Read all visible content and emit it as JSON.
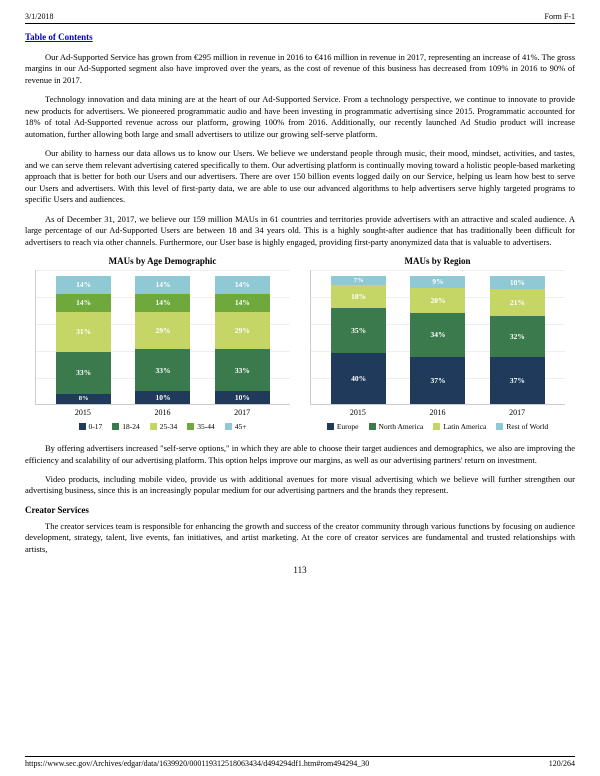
{
  "header": {
    "date": "3/1/2018",
    "title": "Form F-1"
  },
  "toc": "Table of Contents",
  "paras": {
    "p1": "Our Ad-Supported Service has grown from €295 million in revenue in 2016 to €416 million in revenue in 2017, representing an increase of 41%. The gross margins in our Ad-Supported segment also have improved over the years, as the cost of revenue of this business has decreased from 109% in 2016 to 90% of revenue in 2017.",
    "p2": "Technology innovation and data mining are at the heart of our Ad-Supported Service. From a technology perspective, we continue to innovate to provide new products for advertisers. We pioneered programmatic audio and have been investing in programmatic advertising since 2015. Programmatic accounted for 18% of total Ad-Supported revenue across our platform, growing 100% from 2016. Additionally, our recently launched Ad Studio product will increase automation, further allowing both large and small advertisers to utilize our growing self-serve platform.",
    "p3": "Our ability to harness our data allows us to know our Users. We believe we understand people through music, their mood, mindset, activities, and tastes, and we can serve them relevant advertising catered specifically to them. Our advertising platform is continually moving toward a holistic people-based marketing approach that is better for both our Users and our advertisers. There are over 150 billion events logged daily on our Service, helping us learn how best to serve our Users and advertisers. With this level of first-party data, we are able to use our advanced algorithms to help advertisers serve highly targeted programs to specific Users and audiences.",
    "p4": "As of December 31, 2017, we believe our 159 million MAUs in 61 countries and territories provide advertisers with an attractive and scaled audience. A large percentage of our Ad-Supported Users are between 18 and 34 years old. This is a highly sought-after audience that has traditionally been difficult for advertisers to reach via other channels. Furthermore, our User base is highly engaged, providing first-party anonymized data that is valuable to advertisers.",
    "p5": "By offering advertisers increased \"self-serve options,\" in which they are able to choose their target audiences and demographics, we also are improving the efficiency and scalability of our advertising platform. This option helps improve our margins, as well as our advertising partners' return on investment.",
    "p6": "Video products, including mobile video, provide us with additional avenues for more visual advertising which we believe will further strengthen our advertising business, since this is an increasingly popular medium for our advertising partners and the brands they represent.",
    "p7": "The creator services team is responsible for enhancing the growth and success of the creator community through various functions by focusing on audience development, strategy, talent, live events, fan initiatives, and artist marketing. At the core of creator services are fundamental and trusted relationships with artists,"
  },
  "charts": {
    "age": {
      "title": "MAUs by Age Demographic",
      "categories": [
        "2015",
        "2016",
        "2017"
      ],
      "series": [
        {
          "name": "45+",
          "color": "#8fc9d4",
          "values": [
            "14%",
            "14%",
            "14%"
          ]
        },
        {
          "name": "35-44",
          "color": "#6fa83d",
          "values": [
            "14%",
            "14%",
            "14%"
          ]
        },
        {
          "name": "25-34",
          "color": "#c5d666",
          "values": [
            "31%",
            "29%",
            "29%"
          ]
        },
        {
          "name": "18-24",
          "color": "#3a7a4c",
          "values": [
            "33%",
            "33%",
            "33%"
          ]
        },
        {
          "name": "0-17",
          "color": "#1f3a5a",
          "values": [
            "8%",
            "10%",
            "10%"
          ]
        }
      ],
      "legend": [
        "0-17",
        "18-24",
        "25-34",
        "35-44",
        "45+"
      ],
      "legend_colors": [
        "#1f3a5a",
        "#3a7a4c",
        "#c5d666",
        "#6fa83d",
        "#8fc9d4"
      ]
    },
    "region": {
      "title": "MAUs by Region",
      "categories": [
        "2015",
        "2016",
        "2017"
      ],
      "series": [
        {
          "name": "Rest of World",
          "color": "#8fc9d4",
          "values": [
            "7%",
            "9%",
            "10%"
          ]
        },
        {
          "name": "Latin America",
          "color": "#c5d666",
          "values": [
            "18%",
            "20%",
            "21%"
          ]
        },
        {
          "name": "North America",
          "color": "#3a7a4c",
          "values": [
            "35%",
            "34%",
            "32%"
          ]
        },
        {
          "name": "Europe",
          "color": "#1f3a5a",
          "values": [
            "40%",
            "37%",
            "37%"
          ]
        }
      ],
      "legend": [
        "Europe",
        "North America",
        "Latin America",
        "Rest of World"
      ],
      "legend_colors": [
        "#1f3a5a",
        "#3a7a4c",
        "#c5d666",
        "#8fc9d4"
      ]
    }
  },
  "section": "Creator Services",
  "pagenum": "113",
  "footer": {
    "url": "https://www.sec.gov/Archives/edgar/data/1639920/000119312518063434/d494294df1.htm#rom494294_30",
    "pages": "120/264"
  }
}
